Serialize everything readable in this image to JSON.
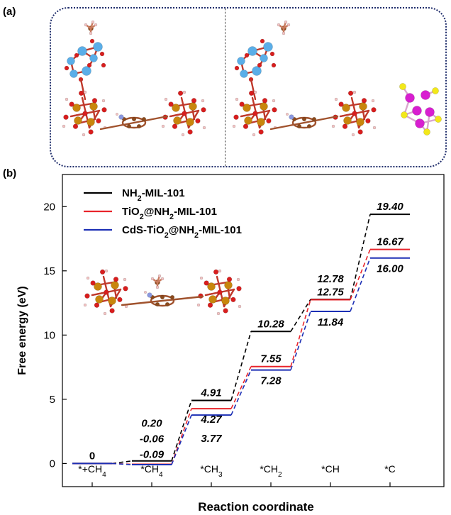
{
  "panels": {
    "a": "(a)",
    "b": "(b)"
  },
  "colors": {
    "nh2": "#000000",
    "tio2": "#e8242b",
    "cds": "#1c2fb5",
    "fe": "#c8860d",
    "o": "#d81e1e",
    "c": "#8b4a1c",
    "ti": "#5aaee8",
    "cd": "#d81ed0",
    "s": "#f2e81a",
    "n": "#8a98e0",
    "h": "#f3c4c4"
  },
  "chart_data": {
    "type": "line",
    "xlabel": "Reaction coordinate",
    "ylabel": "Free energy (eV)",
    "ylim": [
      -1.8,
      22.5
    ],
    "yticks": [
      0,
      5,
      10,
      15,
      20
    ],
    "categories": [
      {
        "base": "*+CH",
        "sub": "4"
      },
      {
        "base": "*CH",
        "sub": "4"
      },
      {
        "base": "*CH",
        "sub": "3"
      },
      {
        "base": "*CH",
        "sub": "2"
      },
      {
        "base": "*CH",
        "sub": ""
      },
      {
        "base": "*C",
        "sub": ""
      }
    ],
    "series": [
      {
        "name_parts": [
          "NH",
          "2",
          "-MIL-101"
        ],
        "values": [
          0,
          0.2,
          4.91,
          10.28,
          12.78,
          19.4
        ]
      },
      {
        "name_parts": [
          "TiO",
          "2",
          "@NH",
          "2",
          "-MIL-101"
        ],
        "values": [
          0,
          -0.06,
          4.27,
          7.55,
          12.75,
          16.67
        ]
      },
      {
        "name_parts": [
          "CdS-TiO",
          "2",
          "@NH",
          "2",
          "-MIL-101"
        ],
        "values": [
          0,
          -0.09,
          3.77,
          7.28,
          11.84,
          16.0
        ]
      }
    ],
    "data_labels": [
      {
        "text": "0",
        "x": 0,
        "y": 0,
        "pos": "above"
      },
      {
        "text": "0.20",
        "x": 1,
        "y": 0.2,
        "pos": "stack1"
      },
      {
        "text": "-0.06",
        "x": 1,
        "y": -0.06,
        "pos": "stack2"
      },
      {
        "text": "-0.09",
        "x": 1,
        "y": -0.09,
        "pos": "stack3"
      },
      {
        "text": "4.91",
        "x": 2,
        "y": 4.91,
        "pos": "above"
      },
      {
        "text": "4.27",
        "x": 2,
        "y": 4.27,
        "pos": "below1"
      },
      {
        "text": "3.77",
        "x": 2,
        "y": 3.77,
        "pos": "below2"
      },
      {
        "text": "10.28",
        "x": 3,
        "y": 10.28,
        "pos": "above"
      },
      {
        "text": "7.55",
        "x": 3,
        "y": 7.55,
        "pos": "above"
      },
      {
        "text": "7.28",
        "x": 3,
        "y": 7.28,
        "pos": "below1"
      },
      {
        "text": "12.78",
        "x": 4,
        "y": 12.78,
        "pos": "above2"
      },
      {
        "text": "12.75",
        "x": 4,
        "y": 12.75,
        "pos": "above"
      },
      {
        "text": "11.84",
        "x": 4,
        "y": 11.84,
        "pos": "below1"
      },
      {
        "text": "19.40",
        "x": 5,
        "y": 19.4,
        "pos": "above"
      },
      {
        "text": "16.67",
        "x": 5,
        "y": 16.67,
        "pos": "above"
      },
      {
        "text": "16.00",
        "x": 5,
        "y": 16.0,
        "pos": "below1"
      }
    ],
    "legend_position": "top-left",
    "grid": false
  }
}
